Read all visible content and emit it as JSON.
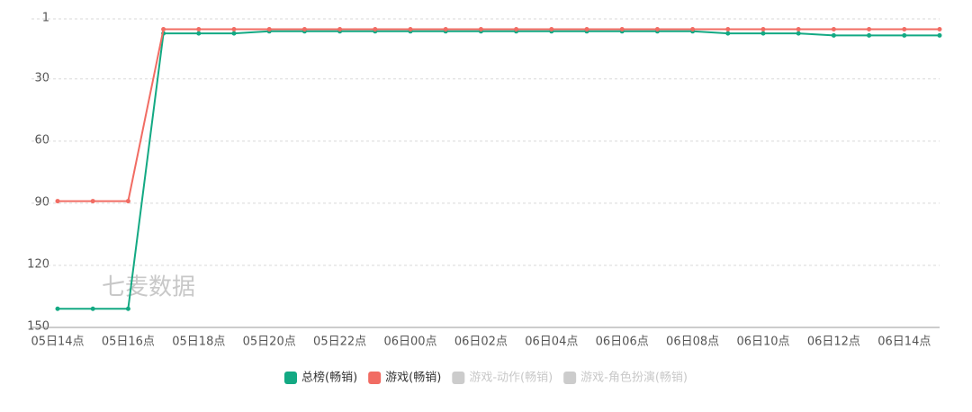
{
  "chart_data": {
    "type": "line",
    "categories": [
      "05日14点",
      null,
      "05日16点",
      null,
      "05日18点",
      null,
      "05日20点",
      null,
      "05日22点",
      null,
      "06日00点",
      null,
      "06日02点",
      null,
      "06日04点",
      null,
      "06日06点",
      null,
      "06日08点",
      null,
      "06日10点",
      null,
      "06日12点",
      null,
      "06日14点",
      null
    ],
    "series": [
      {
        "name": "总榜(畅销)",
        "color": "#13a983",
        "values": [
          141,
          141,
          141,
          8,
          8,
          8,
          7,
          7,
          7,
          7,
          7,
          7,
          7,
          7,
          7,
          7,
          7,
          7,
          7,
          8,
          8,
          8,
          9,
          9,
          9,
          9
        ]
      },
      {
        "name": "游戏(畅销)",
        "color": "#f16c63",
        "values": [
          89,
          89,
          89,
          6,
          6,
          6,
          6,
          6,
          6,
          6,
          6,
          6,
          6,
          6,
          6,
          6,
          6,
          6,
          6,
          6,
          6,
          6,
          6,
          6,
          6,
          6
        ]
      }
    ],
    "inactive_series": [
      {
        "name": "游戏-动作(畅销)",
        "color": "#cccccc"
      },
      {
        "name": "游戏-角色扮演(畅销)",
        "color": "#cccccc"
      }
    ],
    "ylim": [
      1,
      150
    ],
    "yticks": [
      1,
      30,
      60,
      90,
      120,
      150
    ],
    "y_inverted": true,
    "grid": true,
    "watermark": "七麦数据"
  }
}
